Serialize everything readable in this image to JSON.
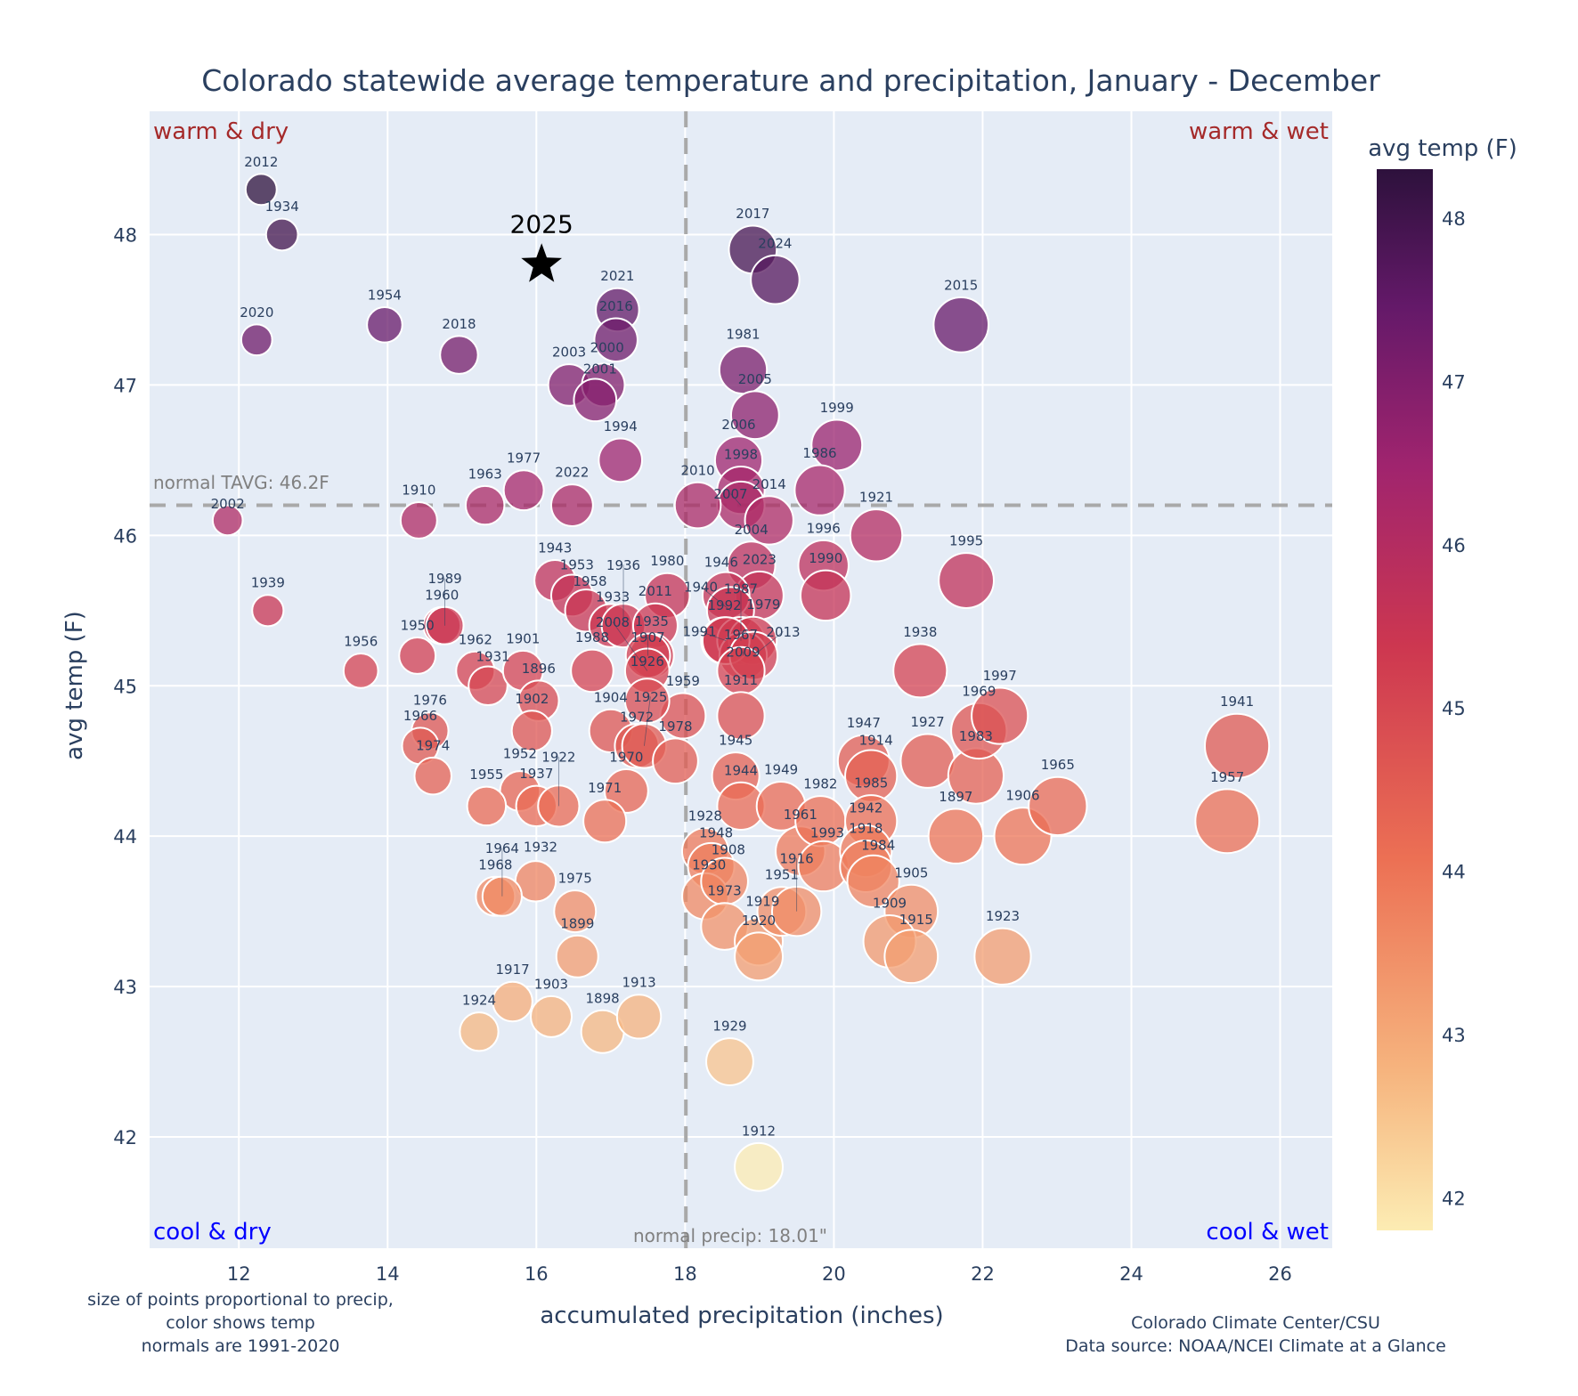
{
  "chart_data": {
    "type": "scatter",
    "title": "Colorado statewide average temperature and precipitation, January - December",
    "xlabel": "accumulated precipitation (inches)",
    "ylabel": "avg temp (F)",
    "xlim": [
      10.8,
      26.7
    ],
    "ylim": [
      41.26,
      48.82
    ],
    "xticks": [
      12,
      14,
      16,
      18,
      20,
      22,
      24,
      26
    ],
    "yticks": [
      42,
      43,
      44,
      45,
      46,
      47,
      48
    ],
    "grid": true,
    "colorbar": {
      "title": "avg temp (F)",
      "range": [
        41.8,
        48.3
      ],
      "ticks": [
        42,
        43,
        44,
        45,
        46,
        47,
        48
      ]
    },
    "normals": {
      "temp": 46.2,
      "precip": 18.01,
      "temp_label": "normal TAVG: 46.2F",
      "precip_label": "normal precip: 18.01\""
    },
    "quadrants": {
      "top_left": "warm & dry",
      "top_right": "warm & wet",
      "bottom_left": "cool & dry",
      "bottom_right": "cool & wet"
    },
    "highlight": {
      "label": "2025",
      "x": 16.07,
      "y": 47.8
    },
    "points": [
      {
        "year": "2012",
        "x": 12.3,
        "y": 48.3
      },
      {
        "year": "1934",
        "x": 12.58,
        "y": 48.0
      },
      {
        "year": "2020",
        "x": 12.24,
        "y": 47.3
      },
      {
        "year": "1954",
        "x": 13.96,
        "y": 47.4
      },
      {
        "year": "2018",
        "x": 14.96,
        "y": 47.2
      },
      {
        "year": "2021",
        "x": 17.09,
        "y": 47.5
      },
      {
        "year": "2016",
        "x": 17.07,
        "y": 47.3
      },
      {
        "year": "2003",
        "x": 16.44,
        "y": 47.0
      },
      {
        "year": "2000",
        "x": 16.9,
        "y": 47.0
      },
      {
        "year": "2001",
        "x": 16.79,
        "y": 46.9
      },
      {
        "year": "1994",
        "x": 17.13,
        "y": 46.5
      },
      {
        "year": "2017",
        "x": 18.91,
        "y": 47.9
      },
      {
        "year": "2024",
        "x": 19.21,
        "y": 47.7
      },
      {
        "year": "1981",
        "x": 18.78,
        "y": 47.1
      },
      {
        "year": "2005",
        "x": 18.94,
        "y": 46.8
      },
      {
        "year": "2006",
        "x": 18.72,
        "y": 46.5
      },
      {
        "year": "1998",
        "x": 18.75,
        "y": 46.3
      },
      {
        "year": "2007",
        "x": 18.75,
        "y": 46.2
      },
      {
        "year": "2014",
        "x": 19.13,
        "y": 46.1
      },
      {
        "year": "2010",
        "x": 18.17,
        "y": 46.2
      },
      {
        "year": "1999",
        "x": 20.04,
        "y": 46.6
      },
      {
        "year": "1986",
        "x": 19.81,
        "y": 46.3
      },
      {
        "year": "1921",
        "x": 20.57,
        "y": 46.0
      },
      {
        "year": "2015",
        "x": 21.71,
        "y": 47.4
      },
      {
        "year": "1995",
        "x": 21.78,
        "y": 45.7
      },
      {
        "year": "1996",
        "x": 19.86,
        "y": 45.8
      },
      {
        "year": "1990",
        "x": 19.89,
        "y": 45.6
      },
      {
        "year": "2004",
        "x": 18.89,
        "y": 45.8
      },
      {
        "year": "2023",
        "x": 19.0,
        "y": 45.6
      },
      {
        "year": "1946",
        "x": 18.55,
        "y": 45.6
      },
      {
        "year": "1940",
        "x": 18.61,
        "y": 45.5
      },
      {
        "year": "1992",
        "x": 18.53,
        "y": 45.3
      },
      {
        "year": "1987",
        "x": 18.75,
        "y": 45.3
      },
      {
        "year": "1979",
        "x": 18.91,
        "y": 45.3
      },
      {
        "year": "2009",
        "x": 18.78,
        "y": 45.2
      },
      {
        "year": "1991",
        "x": 18.55,
        "y": 45.3
      },
      {
        "year": "2013",
        "x": 18.92,
        "y": 45.2
      },
      {
        "year": "1967",
        "x": 18.75,
        "y": 45.1
      },
      {
        "year": "1911",
        "x": 18.75,
        "y": 44.8
      },
      {
        "year": "1980",
        "x": 17.76,
        "y": 45.6
      },
      {
        "year": "1943",
        "x": 16.25,
        "y": 45.7
      },
      {
        "year": "1953",
        "x": 16.48,
        "y": 45.6
      },
      {
        "year": "1958",
        "x": 16.67,
        "y": 45.5
      },
      {
        "year": "1933",
        "x": 17.0,
        "y": 45.4
      },
      {
        "year": "1936",
        "x": 17.17,
        "y": 45.4
      },
      {
        "year": "2011",
        "x": 17.6,
        "y": 45.4
      },
      {
        "year": "1935",
        "x": 17.55,
        "y": 45.2
      },
      {
        "year": "1907",
        "x": 17.5,
        "y": 45.2
      },
      {
        "year": "1988",
        "x": 16.75,
        "y": 45.1
      },
      {
        "year": "2008",
        "x": 17.49,
        "y": 45.1
      },
      {
        "year": "1959",
        "x": 17.97,
        "y": 44.8
      },
      {
        "year": "1926",
        "x": 17.49,
        "y": 44.9
      },
      {
        "year": "1904",
        "x": 17.0,
        "y": 44.7
      },
      {
        "year": "1972",
        "x": 17.35,
        "y": 44.6
      },
      {
        "year": "1925",
        "x": 17.45,
        "y": 44.6
      },
      {
        "year": "1978",
        "x": 17.87,
        "y": 44.5
      },
      {
        "year": "1970",
        "x": 17.21,
        "y": 44.3
      },
      {
        "year": "1971",
        "x": 16.92,
        "y": 44.1
      },
      {
        "year": "1960",
        "x": 14.73,
        "y": 45.4
      },
      {
        "year": "1989",
        "x": 14.77,
        "y": 45.4
      },
      {
        "year": "1950",
        "x": 14.4,
        "y": 45.2
      },
      {
        "year": "1956",
        "x": 13.64,
        "y": 45.1
      },
      {
        "year": "1962",
        "x": 15.18,
        "y": 45.1
      },
      {
        "year": "1931",
        "x": 15.35,
        "y": 45.0
      },
      {
        "year": "1901",
        "x": 15.82,
        "y": 45.1
      },
      {
        "year": "1896",
        "x": 16.03,
        "y": 44.9
      },
      {
        "year": "1902",
        "x": 15.94,
        "y": 44.7
      },
      {
        "year": "1976",
        "x": 14.57,
        "y": 44.7
      },
      {
        "year": "1966",
        "x": 14.44,
        "y": 44.6
      },
      {
        "year": "1974",
        "x": 14.61,
        "y": 44.4
      },
      {
        "year": "1939",
        "x": 12.39,
        "y": 45.5
      },
      {
        "year": "2002",
        "x": 11.85,
        "y": 46.1
      },
      {
        "year": "1910",
        "x": 14.42,
        "y": 46.1
      },
      {
        "year": "1963",
        "x": 15.31,
        "y": 46.2
      },
      {
        "year": "1977",
        "x": 15.83,
        "y": 46.3
      },
      {
        "year": "2022",
        "x": 16.48,
        "y": 46.2
      },
      {
        "year": "1952",
        "x": 15.78,
        "y": 44.3
      },
      {
        "year": "1937",
        "x": 16.0,
        "y": 44.2
      },
      {
        "year": "1922",
        "x": 16.3,
        "y": 44.2
      },
      {
        "year": "1955",
        "x": 15.33,
        "y": 44.2
      },
      {
        "year": "1932",
        "x": 15.99,
        "y": 43.7
      },
      {
        "year": "1968",
        "x": 15.45,
        "y": 43.6
      },
      {
        "year": "1964",
        "x": 15.54,
        "y": 43.6
      },
      {
        "year": "1975",
        "x": 16.52,
        "y": 43.5
      },
      {
        "year": "1899",
        "x": 16.55,
        "y": 43.2
      },
      {
        "year": "1917",
        "x": 15.68,
        "y": 42.9
      },
      {
        "year": "1903",
        "x": 16.2,
        "y": 42.8
      },
      {
        "year": "1924",
        "x": 15.23,
        "y": 42.7
      },
      {
        "year": "1898",
        "x": 16.89,
        "y": 42.7
      },
      {
        "year": "1913",
        "x": 17.38,
        "y": 42.8
      },
      {
        "year": "1929",
        "x": 18.6,
        "y": 42.5
      },
      {
        "year": "1912",
        "x": 18.99,
        "y": 41.8
      },
      {
        "year": "1945",
        "x": 18.68,
        "y": 44.4
      },
      {
        "year": "1944",
        "x": 18.75,
        "y": 44.2
      },
      {
        "year": "1949",
        "x": 19.29,
        "y": 44.2
      },
      {
        "year": "1928",
        "x": 18.27,
        "y": 43.9
      },
      {
        "year": "1948",
        "x": 18.35,
        "y": 43.8
      },
      {
        "year": "1930",
        "x": 18.27,
        "y": 43.6
      },
      {
        "year": "1908",
        "x": 18.53,
        "y": 43.7
      },
      {
        "year": "1973",
        "x": 18.53,
        "y": 43.4
      },
      {
        "year": "1919",
        "x": 18.99,
        "y": 43.3
      },
      {
        "year": "1920",
        "x": 18.99,
        "y": 43.2
      },
      {
        "year": "1951",
        "x": 19.3,
        "y": 43.5
      },
      {
        "year": "1916",
        "x": 19.5,
        "y": 43.5
      },
      {
        "year": "1961",
        "x": 19.55,
        "y": 43.9
      },
      {
        "year": "1982",
        "x": 19.82,
        "y": 44.1
      },
      {
        "year": "1993",
        "x": 19.86,
        "y": 43.8
      },
      {
        "year": "1947",
        "x": 20.4,
        "y": 44.5
      },
      {
        "year": "1914",
        "x": 20.5,
        "y": 44.4
      },
      {
        "year": "1985",
        "x": 20.5,
        "y": 44.1
      },
      {
        "year": "1942",
        "x": 20.43,
        "y": 43.9
      },
      {
        "year": "1918",
        "x": 20.43,
        "y": 43.8
      },
      {
        "year": "1984",
        "x": 20.53,
        "y": 43.7
      },
      {
        "year": "1905",
        "x": 21.04,
        "y": 43.5
      },
      {
        "year": "1909",
        "x": 20.75,
        "y": 43.3
      },
      {
        "year": "1915",
        "x": 21.04,
        "y": 43.2
      },
      {
        "year": "1923",
        "x": 22.27,
        "y": 43.2
      },
      {
        "year": "1897",
        "x": 21.64,
        "y": 44.0
      },
      {
        "year": "1927",
        "x": 21.26,
        "y": 44.5
      },
      {
        "year": "1983",
        "x": 21.91,
        "y": 44.4
      },
      {
        "year": "1969",
        "x": 21.95,
        "y": 44.7
      },
      {
        "year": "1997",
        "x": 22.23,
        "y": 44.8
      },
      {
        "year": "1906",
        "x": 22.54,
        "y": 44.0
      },
      {
        "year": "1965",
        "x": 23.01,
        "y": 44.2
      },
      {
        "year": "1938",
        "x": 21.16,
        "y": 45.1
      },
      {
        "year": "1941",
        "x": 25.42,
        "y": 44.6
      },
      {
        "year": "1957",
        "x": 25.29,
        "y": 44.1
      }
    ]
  },
  "footnotes": {
    "left": [
      "size of points proportional to precip,",
      "color shows temp",
      "normals are 1991-2020"
    ],
    "right": [
      "Colorado Climate Center/CSU",
      "Data source: NOAA/NCEI Climate at a Glance"
    ]
  },
  "colors": {
    "plot_bg": "#e5ecf6",
    "text": "#2a3f5f",
    "quadrant_warm": "#a52a2a",
    "quadrant_cool": "#0000ff",
    "normal_line": "#a9a9a9"
  }
}
